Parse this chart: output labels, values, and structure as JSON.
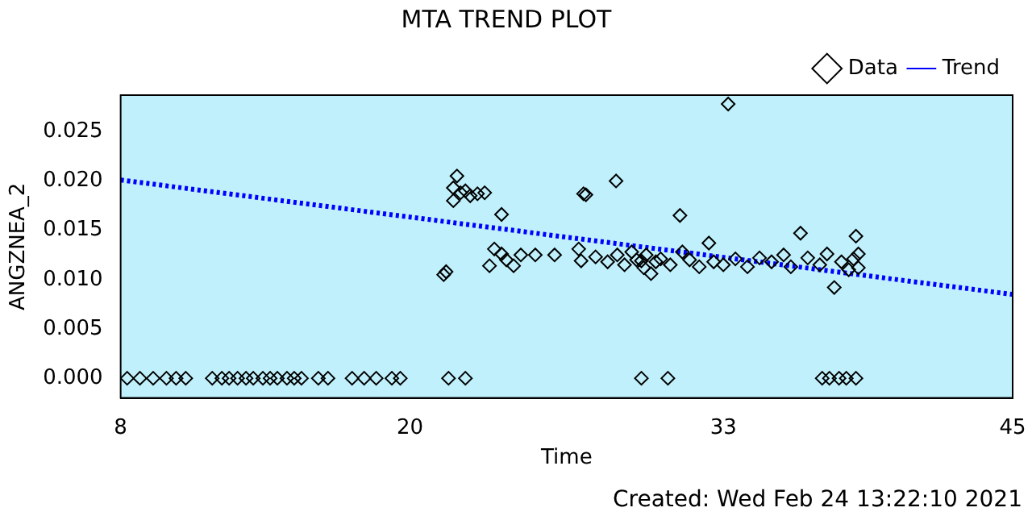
{
  "chart_data": {
    "type": "scatter",
    "title": "MTA TREND PLOT",
    "xlabel": "Time",
    "ylabel": "ANGZNEA_2",
    "xlim": [
      8,
      45
    ],
    "xticks": [
      8,
      20,
      33,
      45
    ],
    "ylim": [
      -0.002,
      0.0287
    ],
    "yticks": [
      {
        "value": 0,
        "label": "0.000"
      },
      {
        "value": 0.005,
        "label": "0.005"
      },
      {
        "value": 0.01,
        "label": "0.010"
      },
      {
        "value": 0.015,
        "label": "0.015"
      },
      {
        "value": 0.02,
        "label": "0.020"
      },
      {
        "value": 0.025,
        "label": "0.025"
      }
    ],
    "grid": false,
    "legend": "top right",
    "annotations": [
      "Created: Wed Feb 24 13:22:10 2021"
    ],
    "series": [
      {
        "name": "Data",
        "type": "scatter",
        "color": "#000000",
        "marker": "diamond",
        "x": [
          8.27,
          8.8,
          9.35,
          9.9,
          10.3,
          10.7,
          11.8,
          12.2,
          12.5,
          12.85,
          13.2,
          13.5,
          13.9,
          14.2,
          14.5,
          14.9,
          15.2,
          15.5,
          16.2,
          16.6,
          17.6,
          18.1,
          18.6,
          19.25,
          19.6,
          21.6,
          22.3,
          29.6,
          30.7,
          37.1,
          37.4,
          37.8,
          38.1,
          38.5,
          21.4,
          21.5,
          21.8,
          21.8,
          21.95,
          22.1,
          22.3,
          22.5,
          22.8,
          23.1,
          23.8,
          23.3,
          23.5,
          23.8,
          24.0,
          24.3,
          24.6,
          25.2,
          26.0,
          27.2,
          27.3,
          27.0,
          27.1,
          27.7,
          28.2,
          28.55,
          28.6,
          28.9,
          29.2,
          29.4,
          29.6,
          29.7,
          29.8,
          30.0,
          30.2,
          30.4,
          30.8,
          31.2,
          31.3,
          31.6,
          32.0,
          32.4,
          32.6,
          33.0,
          33.2,
          33.5,
          34.0,
          34.5,
          35.0,
          35.5,
          35.8,
          36.2,
          36.5,
          37.0,
          37.3,
          37.6,
          37.9,
          38.2,
          38.4,
          38.5,
          38.6,
          38.6
        ],
        "values": [
          0,
          0,
          0,
          0,
          0,
          0,
          0,
          0,
          0,
          0,
          0,
          0,
          0,
          0,
          0,
          0,
          0,
          0,
          0,
          0,
          0,
          0,
          0,
          0,
          0,
          0,
          0,
          0,
          0,
          0,
          0,
          0,
          0,
          0,
          0.0105,
          0.0108,
          0.018,
          0.0193,
          0.0205,
          0.0188,
          0.019,
          0.0185,
          0.0187,
          0.0188,
          0.0166,
          0.0114,
          0.0131,
          0.0126,
          0.012,
          0.0114,
          0.0125,
          0.0125,
          0.0125,
          0.0187,
          0.0186,
          0.0131,
          0.0119,
          0.0123,
          0.0118,
          0.02,
          0.0125,
          0.0115,
          0.0128,
          0.012,
          0.0119,
          0.0112,
          0.0125,
          0.0106,
          0.0118,
          0.0121,
          0.0115,
          0.0165,
          0.0128,
          0.012,
          0.0113,
          0.0137,
          0.0118,
          0.0115,
          0.0278,
          0.0121,
          0.0113,
          0.0122,
          0.0118,
          0.0125,
          0.0113,
          0.0147,
          0.0122,
          0.0115,
          0.0126,
          0.0092,
          0.0118,
          0.011,
          0.0121,
          0.0144,
          0.0126,
          0.0112
        ]
      },
      {
        "name": "Trend",
        "type": "line",
        "color": "#0000ff",
        "line_style": "dotted",
        "marker": "none",
        "x": [
          8,
          45
        ],
        "values": [
          0.0201,
          0.0085
        ]
      }
    ]
  }
}
